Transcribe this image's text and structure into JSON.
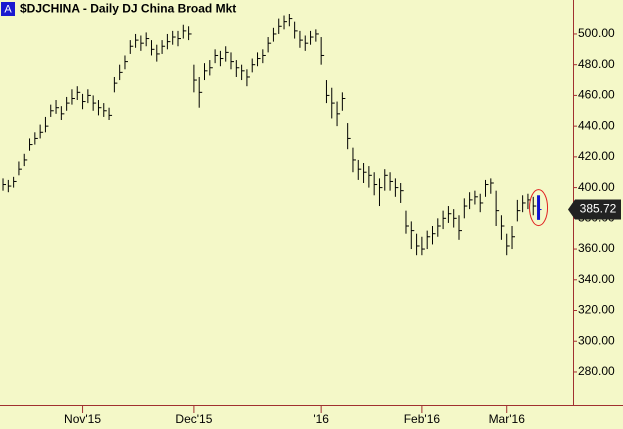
{
  "chart_data": {
    "type": "hlc",
    "badge": "A",
    "title": "$DJCHINA - Daily  DJ China Broad Mkt",
    "close": [
      402,
      401,
      404,
      412,
      418,
      428,
      432,
      436,
      440,
      450,
      452,
      448,
      455,
      458,
      462,
      456,
      460,
      455,
      452,
      450,
      447,
      468,
      475,
      482,
      492,
      496,
      494,
      497,
      490,
      487,
      492,
      495,
      498,
      497,
      502,
      500,
      470,
      462,
      476,
      478,
      486,
      484,
      488,
      482,
      478,
      476,
      472,
      480,
      484,
      486,
      494,
      500,
      505,
      508,
      510,
      502,
      496,
      494,
      498,
      500,
      486,
      460,
      455,
      448,
      458,
      432,
      418,
      412,
      410,
      408,
      402,
      400,
      408,
      404,
      400,
      398,
      375,
      372,
      362,
      360,
      368,
      370,
      375,
      380,
      383,
      380,
      372,
      388,
      392,
      394,
      390,
      402,
      403,
      385,
      375,
      362,
      368,
      385,
      390,
      392,
      388,
      385.72
    ],
    "high": [
      406,
      405,
      407,
      417,
      422,
      432,
      436,
      441,
      446,
      454,
      457,
      453,
      459,
      464,
      466,
      461,
      464,
      460,
      457,
      455,
      452,
      472,
      480,
      486,
      496,
      500,
      499,
      501,
      496,
      493,
      496,
      500,
      502,
      502,
      506,
      505,
      480,
      472,
      481,
      483,
      490,
      489,
      492,
      488,
      483,
      480,
      477,
      484,
      488,
      490,
      498,
      504,
      510,
      512,
      513,
      508,
      502,
      499,
      502,
      503,
      498,
      470,
      465,
      456,
      462,
      442,
      426,
      418,
      416,
      414,
      410,
      406,
      412,
      410,
      406,
      403,
      385,
      378,
      370,
      368,
      372,
      375,
      380,
      385,
      388,
      386,
      382,
      393,
      397,
      398,
      396,
      405,
      406,
      398,
      382,
      370,
      375,
      392,
      395,
      396,
      394,
      395
    ],
    "low": [
      398,
      397,
      400,
      408,
      414,
      424,
      428,
      432,
      436,
      446,
      448,
      444,
      450,
      454,
      457,
      451,
      455,
      450,
      447,
      446,
      444,
      462,
      470,
      477,
      487,
      491,
      489,
      492,
      486,
      482,
      487,
      490,
      493,
      492,
      497,
      496,
      462,
      452,
      470,
      473,
      481,
      479,
      482,
      477,
      472,
      470,
      466,
      475,
      479,
      481,
      488,
      495,
      500,
      503,
      505,
      497,
      491,
      489,
      493,
      495,
      480,
      455,
      445,
      440,
      450,
      425,
      410,
      405,
      403,
      400,
      395,
      388,
      398,
      398,
      394,
      390,
      370,
      360,
      356,
      356,
      360,
      363,
      368,
      373,
      377,
      374,
      366,
      380,
      386,
      389,
      384,
      394,
      396,
      375,
      366,
      356,
      360,
      378,
      384,
      386,
      382,
      379
    ],
    "color": "#000000",
    "last_color": "#1010d0",
    "ylim": [
      258.5,
      522.1
    ],
    "yticks": [
      {
        "value": 280,
        "label": "280.00"
      },
      {
        "value": 300,
        "label": "300.00"
      },
      {
        "value": 320,
        "label": "320.00"
      },
      {
        "value": 340,
        "label": "340.00"
      },
      {
        "value": 360,
        "label": "360.00"
      },
      {
        "value": 380,
        "label": "380.00"
      },
      {
        "value": 400,
        "label": "400.00"
      },
      {
        "value": 420,
        "label": "420.00"
      },
      {
        "value": 440,
        "label": "440.00"
      },
      {
        "value": 460,
        "label": "460.00"
      },
      {
        "value": 480,
        "label": "480.00"
      },
      {
        "value": 500,
        "label": "500.00"
      }
    ],
    "xlim": [
      -0.57,
      107.5
    ],
    "xticks": [
      {
        "value": 15,
        "label": "Nov'15"
      },
      {
        "value": 36,
        "label": "Dec'15"
      },
      {
        "value": 60,
        "label": "'16"
      },
      {
        "value": 79,
        "label": "Feb'16"
      },
      {
        "value": 95,
        "label": "Mar'16"
      }
    ]
  }
}
